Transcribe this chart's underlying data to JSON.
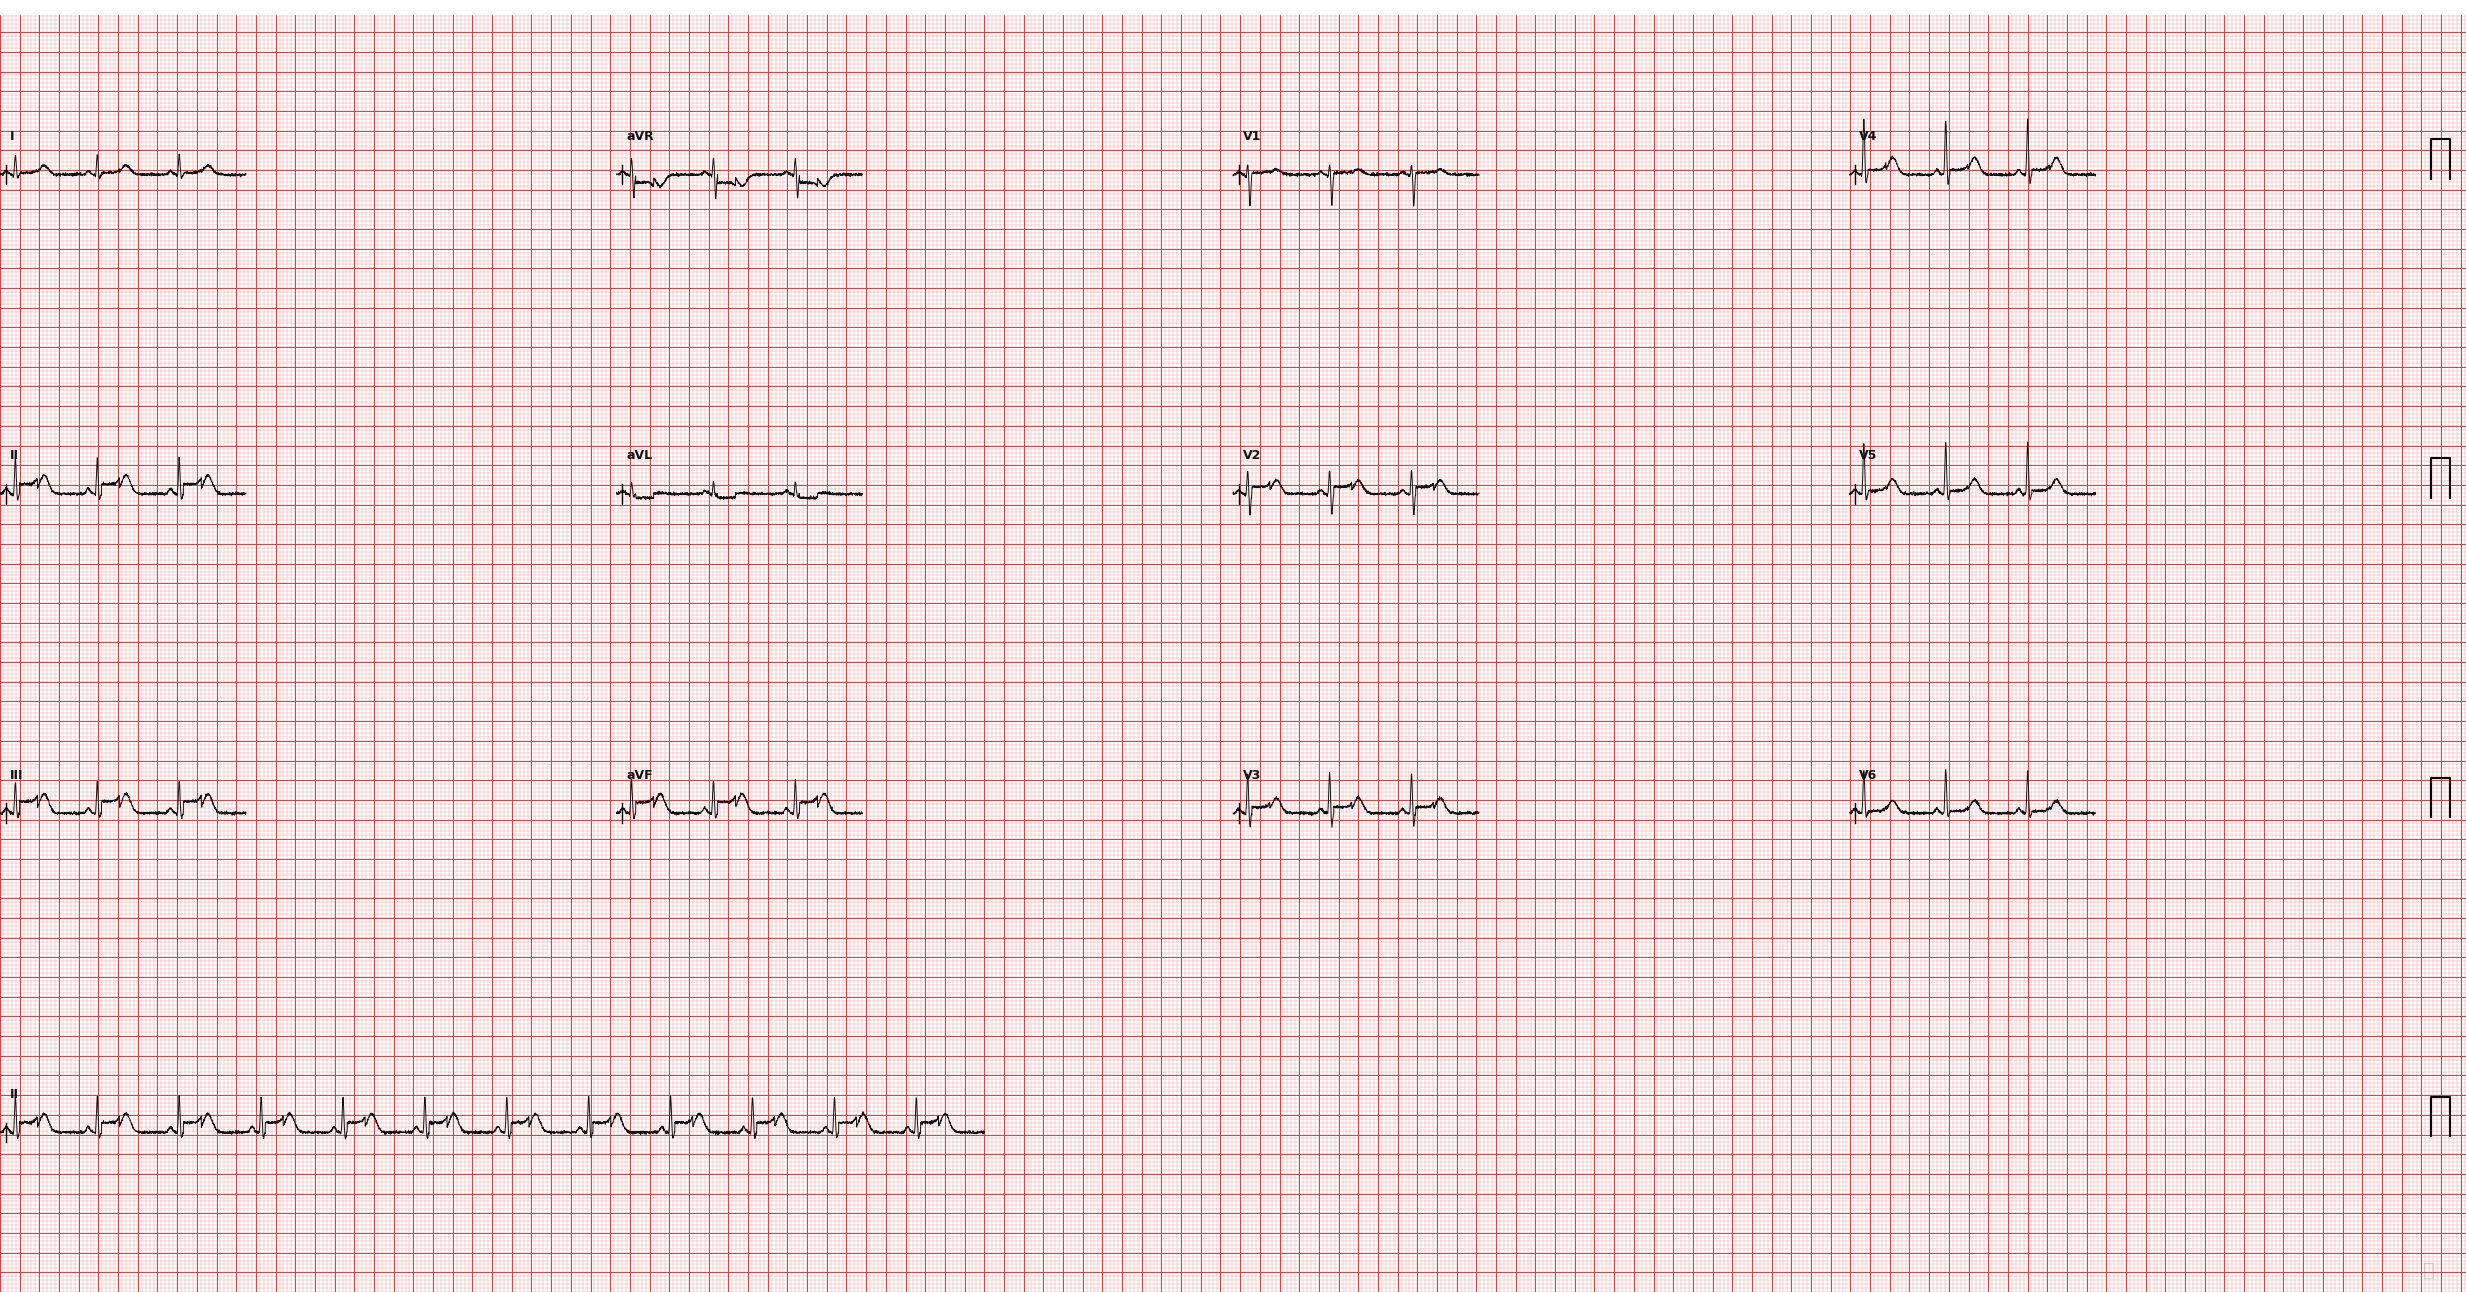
{
  "bg_color": "#f7c8c8",
  "minor_grid_color": "#e89898",
  "major_grid_color": "#cc4444",
  "ecg_color": "#111111",
  "label_color": "#111111",
  "border_color": "#ffffff",
  "fig_width": 24.66,
  "fig_height": 12.92,
  "dpi": 100,
  "hr": 72,
  "lead_layout": [
    [
      "I",
      "aVR",
      "V1",
      "V4"
    ],
    [
      "II",
      "aVL",
      "V2",
      "V5"
    ],
    [
      "III",
      "aVF",
      "V3",
      "V6"
    ],
    [
      "II",
      "",
      "",
      ""
    ]
  ],
  "mm_per_sec": 25,
  "mm_per_mv": 10,
  "minor_mm": 1,
  "major_mm": 5
}
